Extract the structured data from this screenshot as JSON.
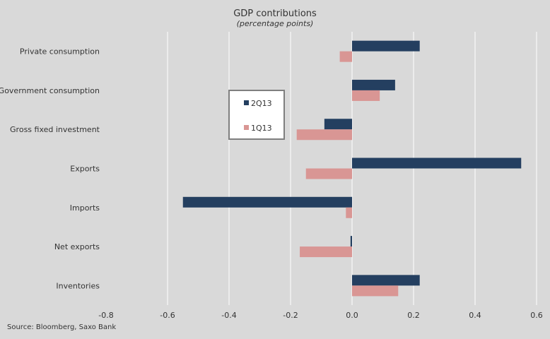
{
  "chart_data": {
    "type": "bar",
    "orientation": "horizontal",
    "title": "GDP  contributions",
    "subtitle": "(percentage points)",
    "categories": [
      "Private consumption",
      "Government consumption",
      "Gross fixed investment",
      "Exports",
      "Imports",
      "Net exports",
      "Inventories"
    ],
    "series": [
      {
        "name": "2Q13",
        "color": "#243f60",
        "values": [
          0.22,
          0.14,
          -0.09,
          0.55,
          -0.55,
          -0.005,
          0.22
        ]
      },
      {
        "name": "1Q13",
        "color": "#d99694",
        "values": [
          -0.04,
          0.09,
          -0.18,
          -0.15,
          -0.02,
          -0.17,
          0.15
        ]
      }
    ],
    "xlim": [
      -0.8,
      0.6
    ],
    "xticks": [
      "-0.8",
      "-0.6",
      "-0.4",
      "-0.2",
      "0.0",
      "0.2",
      "0.4",
      "0.6"
    ],
    "xtick_values": [
      -0.8,
      -0.6,
      -0.4,
      -0.2,
      0,
      0.2,
      0.4,
      0.6
    ],
    "grid": true,
    "legend_position": "upper-left-center",
    "source": "Source: Bloomberg, Saxo Bank"
  }
}
